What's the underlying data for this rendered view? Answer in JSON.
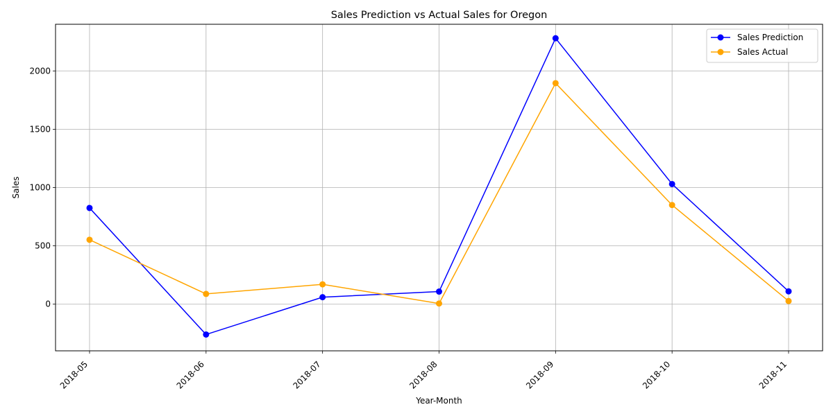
{
  "chart_data": {
    "type": "line",
    "title": "Sales Prediction vs Actual Sales for Oregon",
    "xlabel": "Year-Month",
    "ylabel": "Sales",
    "categories": [
      "2018-05",
      "2018-06",
      "2018-07",
      "2018-08",
      "2018-09",
      "2018-10",
      "2018-11"
    ],
    "ylim": [
      -400,
      2400
    ],
    "yticks": [
      0,
      500,
      1000,
      1500,
      2000
    ],
    "grid": true,
    "legend_position": "top-right",
    "series": [
      {
        "name": "Sales Prediction",
        "color": "#0000ff",
        "values": [
          825,
          -260,
          60,
          108,
          2280,
          1030,
          110
        ]
      },
      {
        "name": "Sales Actual",
        "color": "#ffa500",
        "values": [
          552,
          88,
          170,
          6,
          1895,
          850,
          27
        ]
      }
    ]
  }
}
